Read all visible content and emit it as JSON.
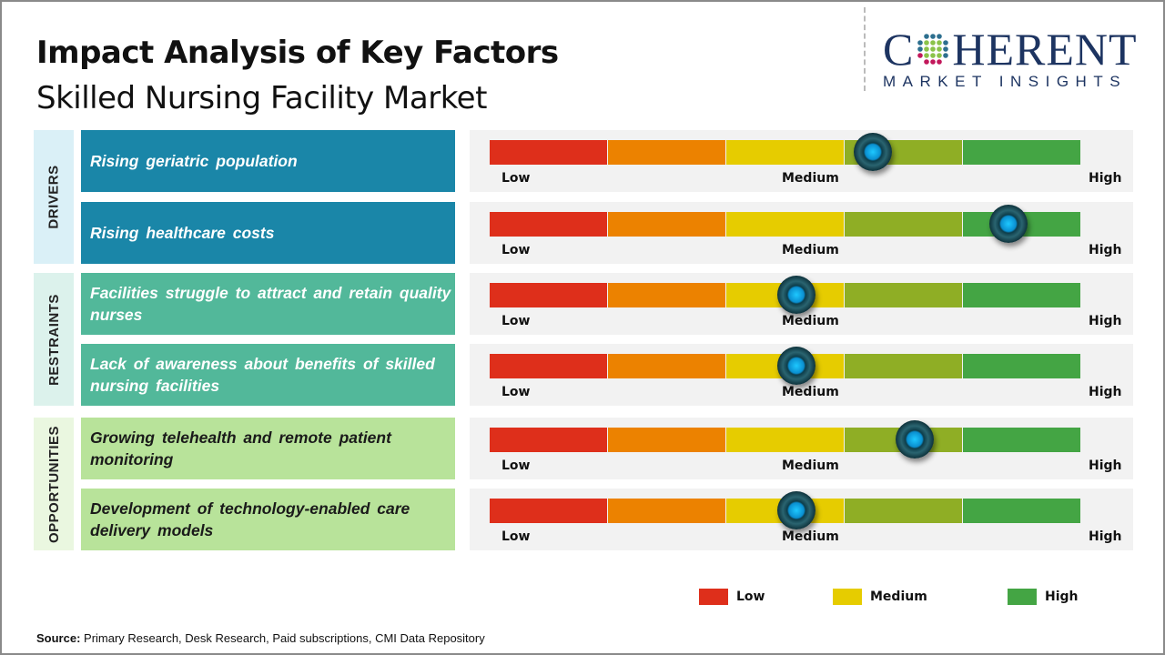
{
  "header": {
    "title": "Impact Analysis of Key Factors",
    "subtitle": "Skilled Nursing Facility Market"
  },
  "logo": {
    "word": "COHERENT",
    "tagline": "MARKET INSIGHTS"
  },
  "colors": {
    "drivers": "#1a86a8",
    "restraints": "#52b89a",
    "opportunities": "#b8e39a",
    "drivers_bg": "#daf0f7",
    "restraints_bg": "#dcf2ec",
    "opportunities_bg": "#eaf7e0",
    "scale": [
      "#de2f1b",
      "#ec8200",
      "#e6cc00",
      "#8fae25",
      "#44a544"
    ]
  },
  "chart_data": {
    "type": "gauge",
    "scale_labels": [
      "Low",
      "Medium",
      "High"
    ],
    "categories": [
      {
        "name": "DRIVERS",
        "factors": [
          {
            "label": "Rising geriatric population",
            "impact_pct": 65
          },
          {
            "label": "Rising healthcare  costs",
            "impact_pct": 88
          }
        ]
      },
      {
        "name": "RESTRAINTS",
        "factors": [
          {
            "label": "Facilities struggle  to attract and retain quality nurses",
            "impact_pct": 52
          },
          {
            "label": "Lack of awareness  about benefits  of skilled nursing facilities",
            "impact_pct": 52
          }
        ]
      },
      {
        "name": "OPPORTUNITIES",
        "factors": [
          {
            "label": "Growing telehealth  and remote patient monitoring",
            "impact_pct": 72
          },
          {
            "label": "Development  of technology-enabled  care delivery models",
            "impact_pct": 52
          }
        ]
      }
    ],
    "legend": [
      {
        "label": "Low",
        "color": "#de2f1b"
      },
      {
        "label": "Medium",
        "color": "#e6cc00"
      },
      {
        "label": "High",
        "color": "#44a544"
      }
    ]
  },
  "source": {
    "prefix": "Source:",
    "text": " Primary Research, Desk Research, Paid subscriptions, CMI Data Repository"
  }
}
